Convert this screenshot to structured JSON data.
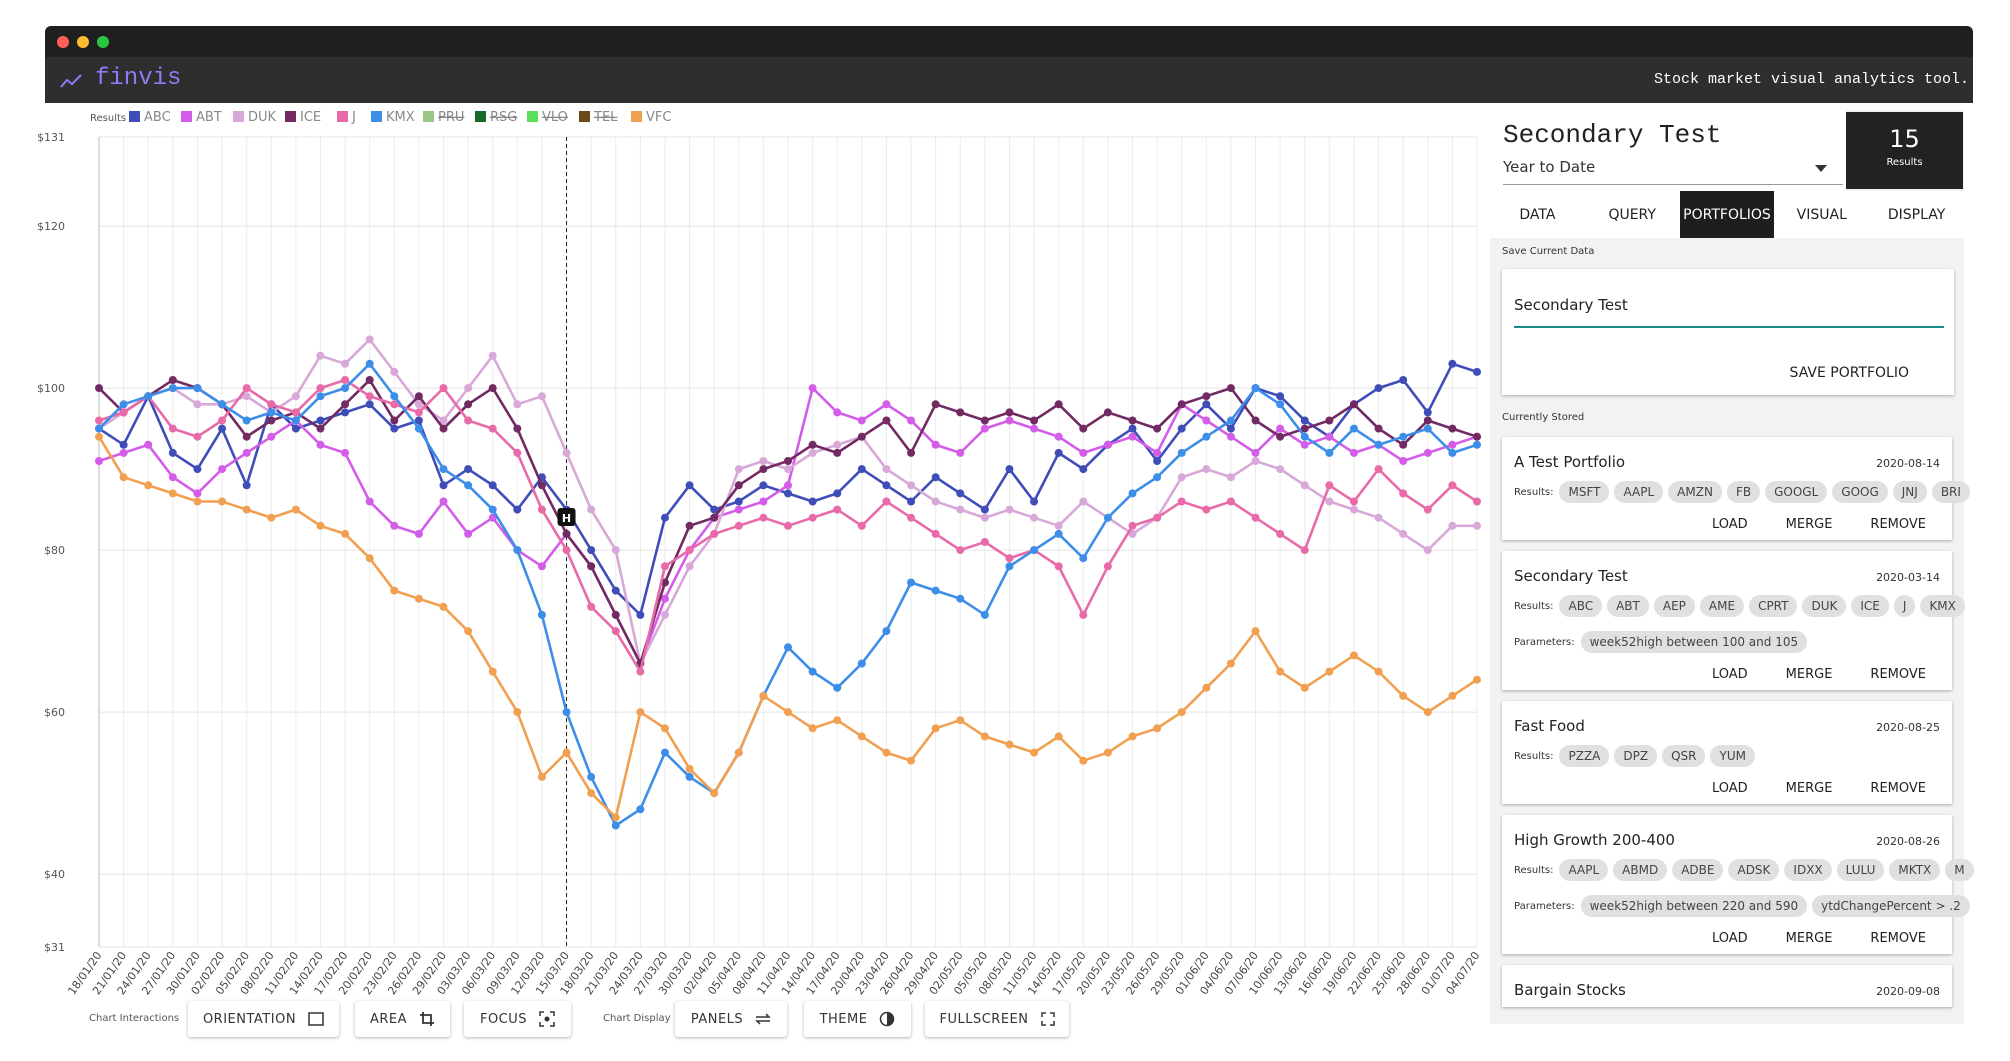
{
  "header": {
    "logo": "finvis",
    "tagline": "Stock market visual analytics tool."
  },
  "chart_data": {
    "type": "line",
    "legend_title": "Results",
    "categories": [
      "18/01/20",
      "21/01/20",
      "24/01/20",
      "27/01/20",
      "30/01/20",
      "02/02/20",
      "05/02/20",
      "08/02/20",
      "11/02/20",
      "14/02/20",
      "17/02/20",
      "20/02/20",
      "23/02/20",
      "26/02/20",
      "29/02/20",
      "03/03/20",
      "06/03/20",
      "09/03/20",
      "12/03/20",
      "15/03/20",
      "18/03/20",
      "21/03/20",
      "24/03/20",
      "27/03/20",
      "30/03/20",
      "02/04/20",
      "05/04/20",
      "08/04/20",
      "11/04/20",
      "14/04/20",
      "17/04/20",
      "20/04/20",
      "23/04/20",
      "26/04/20",
      "29/04/20",
      "02/05/20",
      "05/05/20",
      "08/05/20",
      "11/05/20",
      "14/05/20",
      "17/05/20",
      "20/05/20",
      "23/05/20",
      "26/05/20",
      "29/05/20",
      "01/06/20",
      "04/06/20",
      "07/06/20",
      "10/06/20",
      "13/06/20",
      "16/06/20",
      "19/06/20",
      "22/06/20",
      "25/06/20",
      "28/06/20",
      "01/07/20",
      "04/07/20"
    ],
    "series": [
      {
        "name": "ABC",
        "color": "#3f4db8",
        "values": [
          95,
          93,
          99,
          92,
          90,
          95,
          88,
          98,
          95,
          96,
          97,
          98,
          95,
          96,
          88,
          90,
          88,
          85,
          89,
          85,
          80,
          75,
          72,
          84,
          88,
          85,
          86,
          88,
          87,
          86,
          87,
          90,
          88,
          86,
          89,
          87,
          85,
          90,
          86,
          92,
          90,
          93,
          95,
          91,
          95,
          98,
          95,
          100,
          99,
          96,
          94,
          98,
          100,
          101,
          97,
          103,
          102
        ]
      },
      {
        "name": "ABT",
        "color": "#d35de8",
        "values": [
          91,
          92,
          93,
          89,
          87,
          90,
          92,
          94,
          96,
          93,
          92,
          86,
          83,
          82,
          86,
          82,
          84,
          80,
          78,
          82,
          78,
          72,
          66,
          74,
          80,
          84,
          85,
          86,
          88,
          100,
          97,
          96,
          98,
          96,
          93,
          92,
          95,
          96,
          95,
          94,
          92,
          93,
          94,
          92,
          98,
          96,
          94,
          92,
          95,
          93,
          94,
          92,
          93,
          91,
          92,
          93,
          94
        ]
      },
      {
        "name": "DUK",
        "color": "#d8a8d8",
        "values": [
          95,
          97,
          99,
          100,
          98,
          98,
          99,
          97,
          99,
          104,
          103,
          106,
          102,
          98,
          96,
          100,
          104,
          98,
          99,
          92,
          85,
          80,
          66,
          72,
          78,
          82,
          90,
          91,
          90,
          92,
          93,
          94,
          90,
          88,
          86,
          85,
          84,
          85,
          84,
          83,
          86,
          84,
          82,
          84,
          89,
          90,
          89,
          91,
          90,
          88,
          86,
          85,
          84,
          82,
          80,
          83,
          83
        ]
      },
      {
        "name": "ICE",
        "color": "#722a63",
        "values": [
          100,
          97,
          99,
          101,
          100,
          98,
          94,
          96,
          97,
          95,
          98,
          101,
          96,
          99,
          95,
          98,
          100,
          95,
          88,
          82,
          78,
          72,
          66,
          76,
          83,
          84,
          88,
          90,
          91,
          93,
          92,
          94,
          96,
          92,
          98,
          97,
          96,
          97,
          96,
          98,
          95,
          97,
          96,
          95,
          98,
          99,
          100,
          96,
          94,
          95,
          96,
          98,
          95,
          93,
          96,
          95,
          94
        ]
      },
      {
        "name": "J",
        "color": "#e86aa8",
        "values": [
          96,
          97,
          99,
          95,
          94,
          96,
          100,
          98,
          97,
          100,
          101,
          99,
          98,
          97,
          100,
          96,
          95,
          92,
          85,
          80,
          73,
          70,
          65,
          78,
          80,
          82,
          83,
          84,
          83,
          84,
          85,
          83,
          86,
          84,
          82,
          80,
          81,
          79,
          80,
          78,
          72,
          78,
          83,
          84,
          86,
          85,
          86,
          84,
          82,
          80,
          88,
          86,
          90,
          87,
          85,
          88,
          86
        ]
      },
      {
        "name": "KMX",
        "color": "#3d8ee8",
        "values": [
          95,
          98,
          99,
          100,
          100,
          98,
          96,
          97,
          96,
          99,
          100,
          103,
          99,
          95,
          90,
          88,
          85,
          80,
          72,
          60,
          52,
          46,
          48,
          55,
          52,
          50,
          55,
          62,
          68,
          65,
          63,
          66,
          70,
          76,
          75,
          74,
          72,
          78,
          80,
          82,
          79,
          84,
          87,
          89,
          92,
          94,
          96,
          100,
          98,
          94,
          92,
          95,
          93,
          94,
          95,
          92,
          93
        ]
      },
      {
        "name": "PRU",
        "color": "#98c888",
        "hidden": true
      },
      {
        "name": "RSG",
        "color": "#1a6b2a",
        "hidden": true
      },
      {
        "name": "VLO",
        "color": "#5ae05a",
        "hidden": true
      },
      {
        "name": "TEL",
        "color": "#6b4a1a",
        "hidden": true
      },
      {
        "name": "VFC",
        "color": "#f0a050",
        "values": [
          94,
          89,
          88,
          87,
          86,
          86,
          85,
          84,
          85,
          83,
          82,
          79,
          75,
          74,
          73,
          70,
          65,
          60,
          52,
          55,
          50,
          47,
          60,
          58,
          53,
          50,
          55,
          62,
          60,
          58,
          59,
          57,
          55,
          54,
          58,
          59,
          57,
          56,
          55,
          57,
          54,
          55,
          57,
          58,
          60,
          63,
          66,
          70,
          65,
          63,
          65,
          67,
          65,
          62,
          60,
          62,
          64
        ]
      }
    ],
    "ylim": [
      31,
      131
    ],
    "yticks": [
      {
        "value": 31,
        "label": "$31"
      },
      {
        "value": 40,
        "label": "$40"
      },
      {
        "value": 60,
        "label": "$60"
      },
      {
        "value": 80,
        "label": "$80"
      },
      {
        "value": 100,
        "label": "$100"
      },
      {
        "value": 120,
        "label": "$120"
      },
      {
        "value": 131,
        "label": "$131"
      }
    ],
    "grid": true,
    "crosshair": "15/03/20",
    "crosshair_label": "H"
  },
  "toolbar": {
    "interactions_label": "Chart Interactions",
    "interactions": [
      "ORIENTATION",
      "AREA",
      "FOCUS"
    ],
    "display_label": "Chart Display",
    "display": [
      "PANELS",
      "THEME",
      "FULLSCREEN"
    ]
  },
  "panel": {
    "title": "Secondary Test",
    "period": "Year to Date",
    "count": "15",
    "count_label": "Results",
    "tabs": [
      "DATA",
      "QUERY",
      "PORTFOLIOS",
      "VISUAL",
      "DISPLAY"
    ],
    "active_tab": "PORTFOLIOS",
    "save_label": "Save Current Data",
    "save_input": "Secondary Test",
    "save_button": "SAVE PORTFOLIO",
    "stored_label": "Currently Stored",
    "results_label": "Results:",
    "parameters_label": "Parameters:",
    "buttons": [
      "LOAD",
      "MERGE",
      "REMOVE"
    ],
    "portfolios": [
      {
        "name": "A Test Portfolio",
        "date": "2020-08-14",
        "results": [
          "MSFT",
          "AAPL",
          "AMZN",
          "FB",
          "GOOGL",
          "GOOG",
          "JNJ",
          "BRI"
        ]
      },
      {
        "name": "Secondary Test",
        "date": "2020-03-14",
        "results": [
          "ABC",
          "ABT",
          "AEP",
          "AME",
          "CPRT",
          "DUK",
          "ICE",
          "J",
          "KMX"
        ],
        "parameters": [
          "week52high between 100 and 105"
        ]
      },
      {
        "name": "Fast Food",
        "date": "2020-08-25",
        "results": [
          "PZZA",
          "DPZ",
          "QSR",
          "YUM"
        ]
      },
      {
        "name": "High Growth 200-400",
        "date": "2020-08-26",
        "results": [
          "AAPL",
          "ABMD",
          "ADBE",
          "ADSK",
          "IDXX",
          "LULU",
          "MKTX",
          "M"
        ],
        "parameters": [
          "week52high between 220 and 590",
          "ytdChangePercent > .2"
        ]
      },
      {
        "name": "Bargain Stocks",
        "date": "2020-09-08",
        "results": []
      }
    ]
  }
}
